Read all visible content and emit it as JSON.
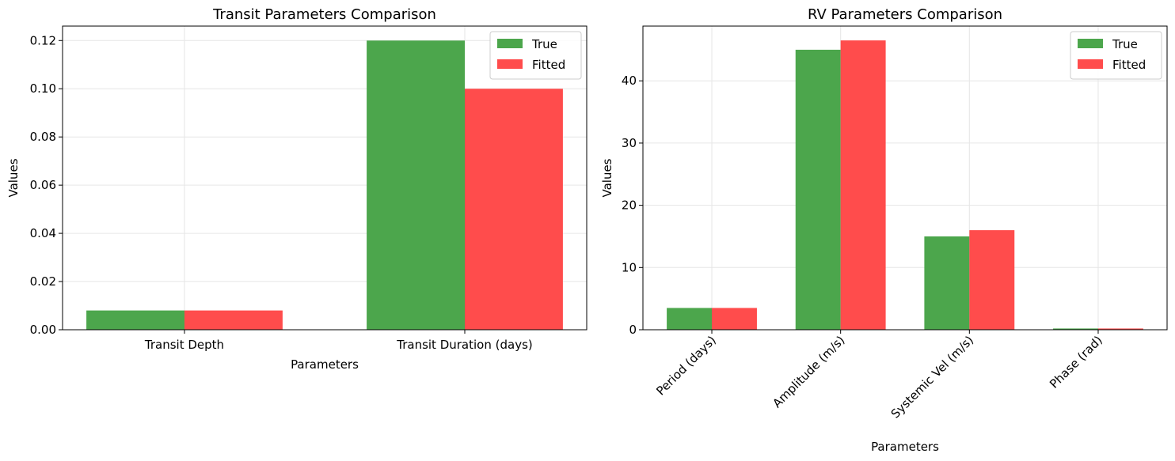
{
  "colors": {
    "true": "#4ca64c",
    "fitted": "#ff4c4c"
  },
  "chart_data": [
    {
      "type": "bar",
      "title": "Transit Parameters Comparison",
      "xlabel": "Parameters",
      "ylabel": "Values",
      "categories": [
        "Transit Depth",
        "Transit Duration (days)"
      ],
      "series": [
        {
          "name": "True",
          "values": [
            0.008,
            0.12
          ]
        },
        {
          "name": "Fitted",
          "values": [
            0.008,
            0.1
          ]
        }
      ],
      "ylim": [
        0,
        0.126
      ],
      "yticks": [
        "0.00",
        "0.02",
        "0.04",
        "0.06",
        "0.08",
        "0.10",
        "0.12"
      ],
      "ytick_values": [
        0,
        0.02,
        0.04,
        0.06,
        0.08,
        0.1,
        0.12
      ],
      "grid": true,
      "legend": "upper-right",
      "xtick_rotation": 0
    },
    {
      "type": "bar",
      "title": "RV Parameters Comparison",
      "xlabel": "Parameters",
      "ylabel": "Values",
      "categories": [
        "Period (days)",
        "Amplitude (m/s)",
        "Systemic Vel (m/s)",
        "Phase (rad)"
      ],
      "series": [
        {
          "name": "True",
          "values": [
            3.5,
            45,
            15,
            0.2
          ]
        },
        {
          "name": "Fitted",
          "values": [
            3.5,
            46.5,
            16,
            0.2
          ]
        }
      ],
      "ylim": [
        0,
        48.8
      ],
      "yticks": [
        "0",
        "10",
        "20",
        "30",
        "40"
      ],
      "ytick_values": [
        0,
        10,
        20,
        30,
        40
      ],
      "grid": true,
      "legend": "upper-right",
      "xtick_rotation": -45
    }
  ]
}
